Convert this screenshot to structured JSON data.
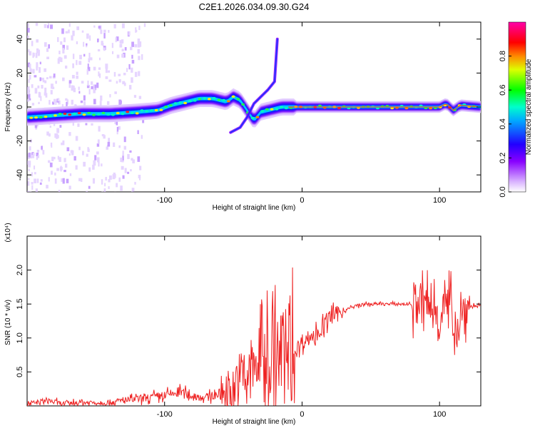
{
  "title": "C2E1.2026.034.09.30.G24",
  "chart_data": [
    {
      "type": "heatmap",
      "xlabel": "Height of straight line (km)",
      "ylabel": "Frequency (Hz)",
      "xlim": [
        -200,
        130
      ],
      "ylim": [
        -50,
        50
      ],
      "xticks": [
        -100,
        0,
        100
      ],
      "yticks": [
        -40,
        -20,
        0,
        20,
        40
      ],
      "colorbar": {
        "label": "Normalized spectral amplitude",
        "range": [
          0,
          1
        ],
        "ticks": [
          "0.0",
          "0.2",
          "0.4",
          "0.6",
          "0.8"
        ],
        "colors": [
          "#ffffff",
          "#8800ff",
          "#0000ff",
          "#00ffff",
          "#00ff00",
          "#ffff00",
          "#ff0000",
          "#ff00aa"
        ]
      },
      "ridge": {
        "x": [
          -200,
          -180,
          -160,
          -140,
          -120,
          -105,
          -95,
          -85,
          -75,
          -65,
          -55,
          -50,
          -45,
          -40,
          -35,
          -30,
          -25,
          -20,
          -15,
          -10,
          0,
          20,
          50,
          80,
          100,
          105,
          110,
          115,
          130
        ],
        "freq": [
          -6,
          -5,
          -4,
          -4,
          -3,
          -2,
          1,
          3,
          5,
          5,
          3,
          6,
          4,
          -2,
          -8,
          -3,
          -2,
          -1,
          0,
          0,
          0,
          0,
          0,
          0,
          0,
          2,
          -2,
          1,
          0
        ]
      }
    },
    {
      "type": "line",
      "xlabel": "Height of straight line (km)",
      "ylabel": "SNR (10 * v/v)",
      "scale_label": "(x10⁴)",
      "xlim": [
        -200,
        130
      ],
      "ylim": [
        0,
        2.5
      ],
      "xticks": [
        -100,
        0,
        100
      ],
      "yticks": [
        0.5,
        1.0,
        1.5,
        2.0
      ],
      "line_color": "#ee2222",
      "series": [
        {
          "x": [
            -200,
            -185,
            -175,
            -160,
            -140,
            -120,
            -100,
            -90,
            -80,
            -70,
            -60,
            -55,
            -50,
            -45,
            -40,
            -35,
            -30,
            -25,
            -20,
            -15,
            -10,
            -5,
            0,
            5,
            10,
            15,
            20,
            25,
            30,
            40,
            50,
            60,
            70,
            80,
            85,
            90,
            95,
            100,
            105,
            110,
            112,
            115,
            118,
            120,
            125,
            130
          ],
          "y": [
            0.02,
            0.08,
            0.03,
            0.05,
            0.05,
            0.1,
            0.15,
            0.2,
            0.15,
            0.12,
            0.18,
            0.25,
            0.25,
            0.4,
            0.45,
            0.55,
            0.8,
            0.7,
            0.7,
            0.75,
            0.7,
            0.8,
            0.95,
            1.0,
            1.05,
            1.15,
            1.3,
            1.35,
            1.4,
            1.48,
            1.5,
            1.5,
            1.5,
            1.5,
            1.5,
            1.48,
            1.45,
            1.4,
            1.45,
            1.35,
            1.1,
            1.3,
            1.4,
            1.45,
            1.47,
            1.47
          ]
        }
      ]
    }
  ]
}
